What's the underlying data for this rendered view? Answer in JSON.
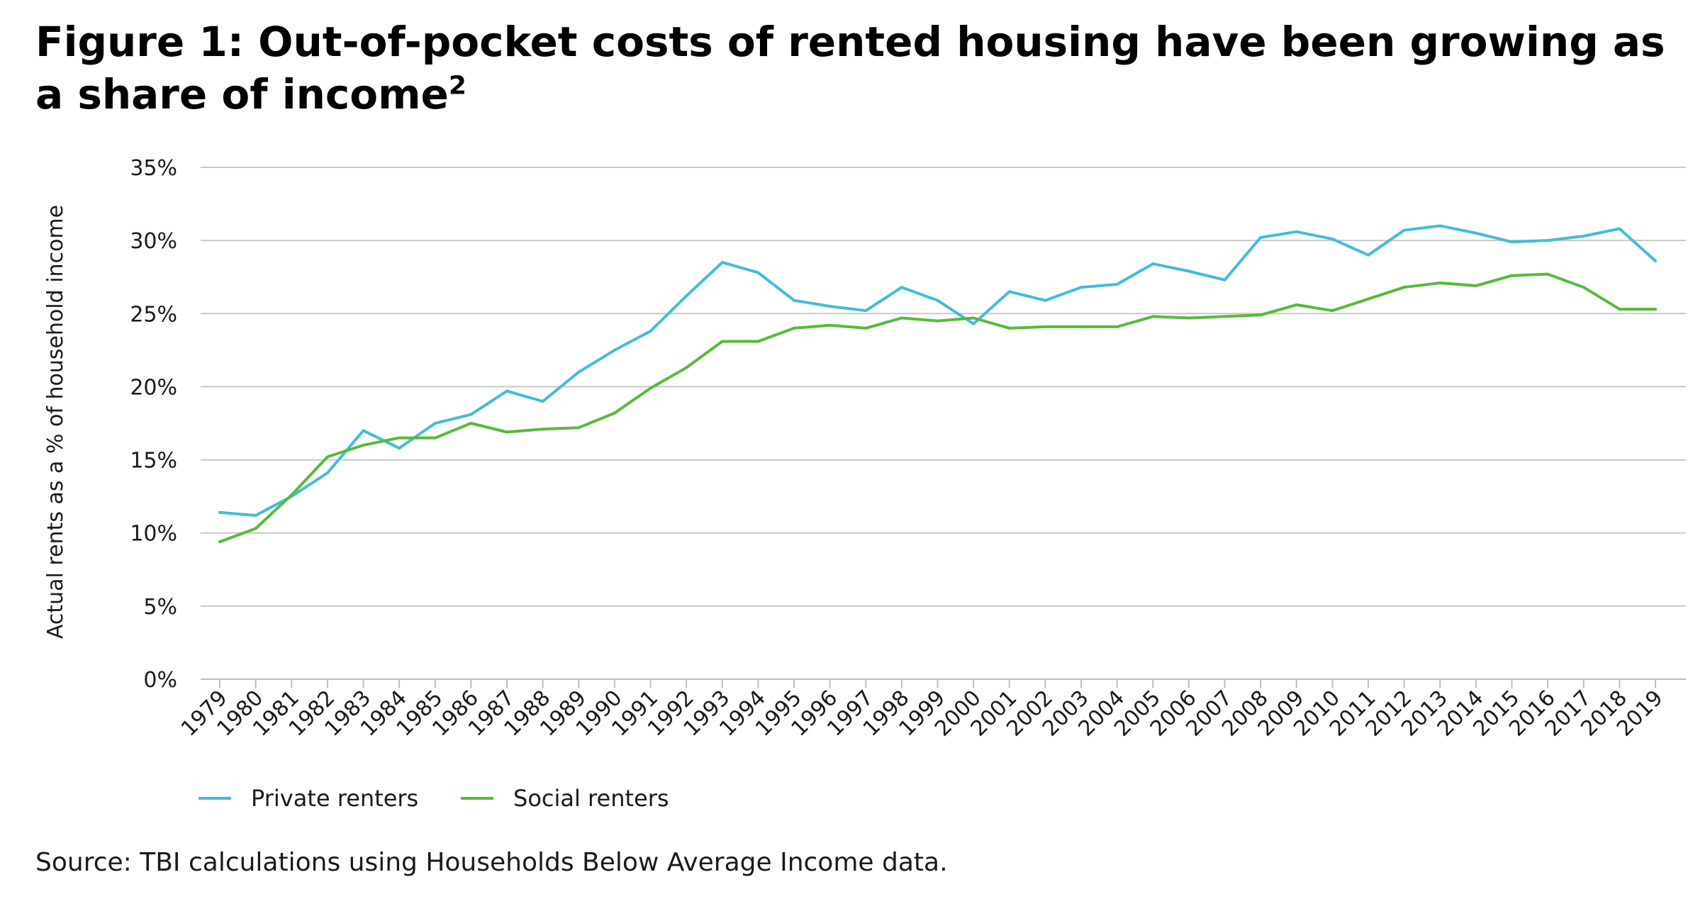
{
  "header": {
    "title": "Figure 1: Out-of-pocket costs of rented housing have been growing as a share of income",
    "title_sup": "2"
  },
  "footer": {
    "source": "Source: TBI calculations using Households Below Average Income data."
  },
  "colors": {
    "private": "#44bcd8",
    "social": "#59b93c",
    "grid": "#c8c8c8"
  },
  "chart_data": {
    "type": "line",
    "title": "Figure 1: Out-of-pocket costs of rented housing have been growing as a share of income",
    "xlabel": "",
    "ylabel": "Actual rents as a % of household income",
    "ylim": [
      0,
      35
    ],
    "yticks": [
      0,
      5,
      10,
      15,
      20,
      25,
      30,
      35
    ],
    "ytick_labels": [
      "0%",
      "5%",
      "10%",
      "15%",
      "20%",
      "25%",
      "30%",
      "35%"
    ],
    "grid": "horizontal",
    "legend_position": "bottom-left",
    "x": [
      "1979",
      "1980",
      "1981",
      "1982",
      "1983",
      "1984",
      "1985",
      "1986",
      "1987",
      "1988",
      "1989",
      "1990",
      "1991",
      "1992",
      "1993",
      "1994",
      "1995",
      "1996",
      "1997",
      "1998",
      "1999",
      "2000",
      "2001",
      "2002",
      "2003",
      "2004",
      "2005",
      "2006",
      "2007",
      "2008",
      "2009",
      "2010",
      "2011",
      "2012",
      "2013",
      "2014",
      "2015",
      "2016",
      "2017",
      "2018",
      "2019"
    ],
    "series": [
      {
        "name": "Private renters",
        "color": "#44bcd8",
        "values": [
          11.4,
          11.2,
          12.5,
          14.1,
          17.0,
          15.8,
          17.5,
          18.1,
          19.7,
          19.0,
          21.0,
          22.5,
          23.8,
          26.2,
          28.5,
          27.8,
          25.9,
          25.5,
          25.2,
          26.8,
          25.9,
          24.3,
          26.5,
          25.9,
          26.8,
          27.0,
          28.4,
          27.9,
          27.3,
          30.2,
          30.6,
          30.1,
          29.0,
          30.7,
          31.0,
          30.5,
          29.9,
          30.0,
          30.3,
          30.8,
          28.6
        ]
      },
      {
        "name": "Social renters",
        "color": "#59b93c",
        "values": [
          9.4,
          10.3,
          12.6,
          15.2,
          16.0,
          16.5,
          16.5,
          17.5,
          16.9,
          17.1,
          17.2,
          18.2,
          19.9,
          21.3,
          23.1,
          23.1,
          24.0,
          24.2,
          24.0,
          24.7,
          24.5,
          24.7,
          24.0,
          24.1,
          24.1,
          24.1,
          24.8,
          24.7,
          24.8,
          24.9,
          25.6,
          25.2,
          26.0,
          26.8,
          27.1,
          26.9,
          27.6,
          27.7,
          26.8,
          25.3,
          25.3
        ]
      }
    ]
  }
}
